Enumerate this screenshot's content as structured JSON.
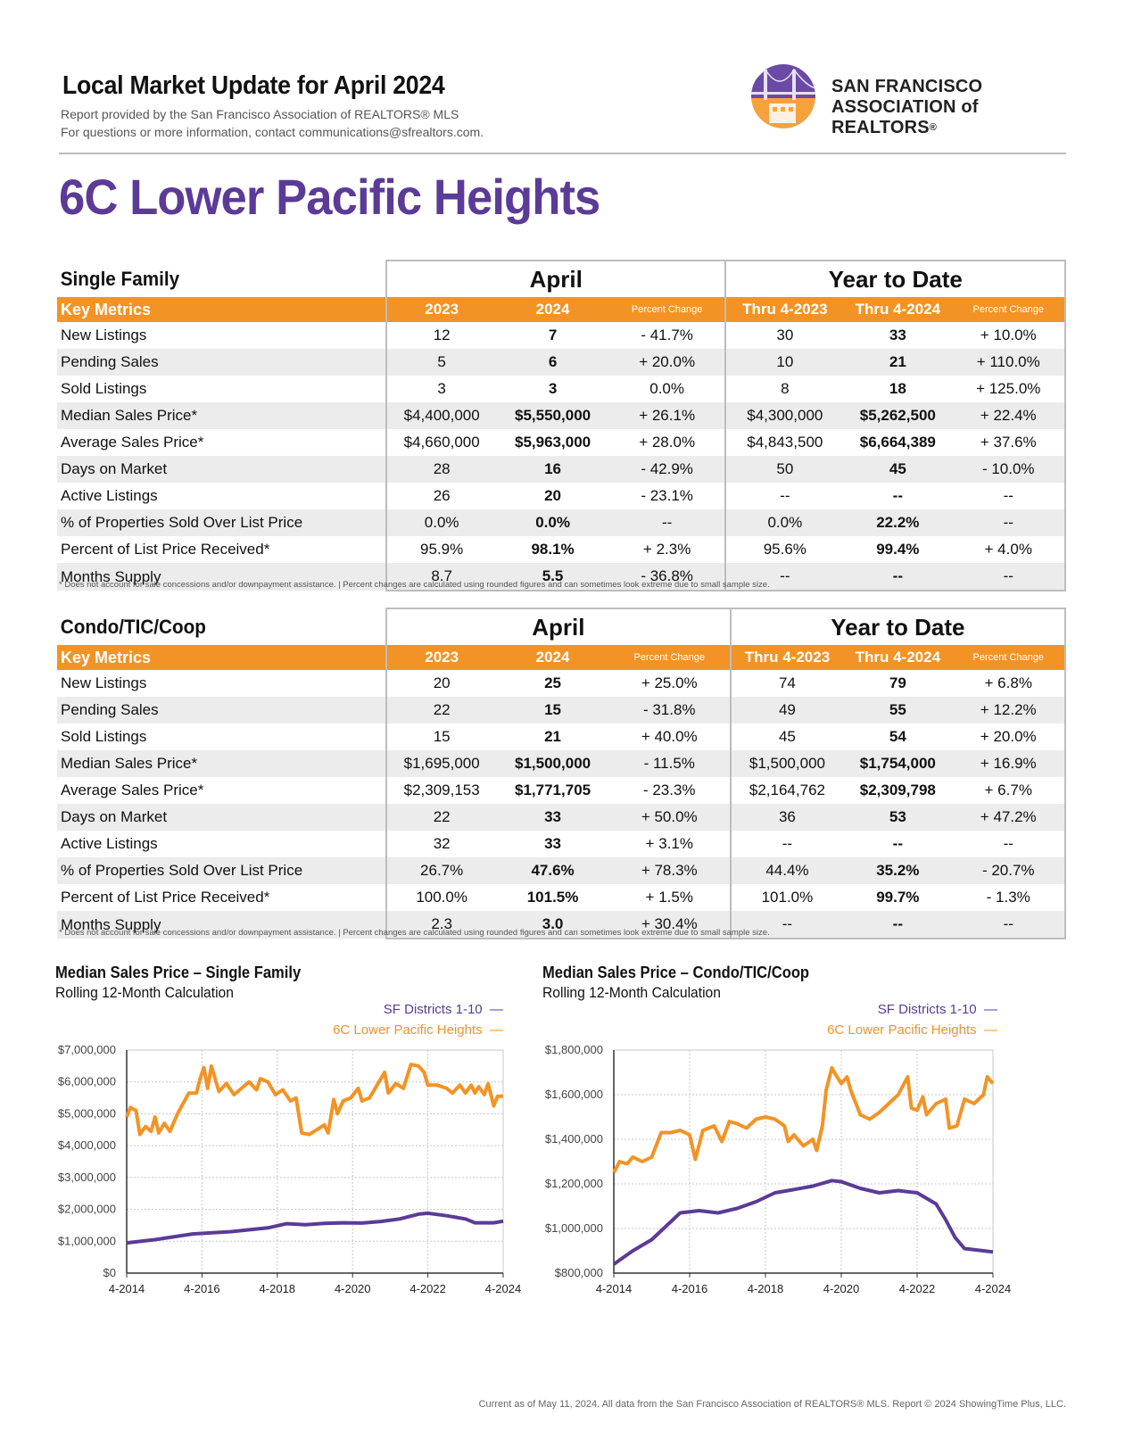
{
  "header": {
    "title": "Local Market Update for April 2024",
    "line1": "Report provided by the San Francisco Association of REALTORS® MLS",
    "line2": "For questions or more information, contact communications@sfrealtors.com.",
    "logo_line1": "SAN FRANCISCO",
    "logo_line2": "ASSOCIATION of REALTORS",
    "logo_reg": "®"
  },
  "area_title": "6C Lower Pacific Heights",
  "col_labels": {
    "april": "April",
    "ytd": "Year to Date",
    "key_metrics": "Key Metrics",
    "y2023": "2023",
    "y2024": "2024",
    "pct": "Percent Change",
    "thru2023": "Thru 4-2023",
    "thru2024": "Thru 4-2024"
  },
  "single_family": {
    "section": "Single Family",
    "rows": [
      {
        "metric": "New Listings",
        "a23": "12",
        "a24": "7",
        "apc": "- 41.7%",
        "y23": "30",
        "y24": "33",
        "ypc": "+ 10.0%"
      },
      {
        "metric": "Pending Sales",
        "a23": "5",
        "a24": "6",
        "apc": "+ 20.0%",
        "y23": "10",
        "y24": "21",
        "ypc": "+ 110.0%"
      },
      {
        "metric": "Sold Listings",
        "a23": "3",
        "a24": "3",
        "apc": "0.0%",
        "y23": "8",
        "y24": "18",
        "ypc": "+ 125.0%"
      },
      {
        "metric": "Median Sales Price*",
        "a23": "$4,400,000",
        "a24": "$5,550,000",
        "apc": "+ 26.1%",
        "y23": "$4,300,000",
        "y24": "$5,262,500",
        "ypc": "+ 22.4%"
      },
      {
        "metric": "Average Sales Price*",
        "a23": "$4,660,000",
        "a24": "$5,963,000",
        "apc": "+ 28.0%",
        "y23": "$4,843,500",
        "y24": "$6,664,389",
        "ypc": "+ 37.6%"
      },
      {
        "metric": "Days on Market",
        "a23": "28",
        "a24": "16",
        "apc": "- 42.9%",
        "y23": "50",
        "y24": "45",
        "ypc": "- 10.0%"
      },
      {
        "metric": "Active Listings",
        "a23": "26",
        "a24": "20",
        "apc": "- 23.1%",
        "y23": "--",
        "y24": "--",
        "ypc": "--"
      },
      {
        "metric": "% of Properties Sold Over List Price",
        "a23": "0.0%",
        "a24": "0.0%",
        "apc": "--",
        "y23": "0.0%",
        "y24": "22.2%",
        "ypc": "--"
      },
      {
        "metric": "Percent of List Price Received*",
        "a23": "95.9%",
        "a24": "98.1%",
        "apc": "+ 2.3%",
        "y23": "95.6%",
        "y24": "99.4%",
        "ypc": "+ 4.0%"
      },
      {
        "metric": "Months Supply",
        "a23": "8.7",
        "a24": "5.5",
        "apc": "- 36.8%",
        "y23": "--",
        "y24": "--",
        "ypc": "--"
      }
    ]
  },
  "condo": {
    "section": "Condo/TIC/Coop",
    "rows": [
      {
        "metric": "New Listings",
        "a23": "20",
        "a24": "25",
        "apc": "+ 25.0%",
        "y23": "74",
        "y24": "79",
        "ypc": "+ 6.8%"
      },
      {
        "metric": "Pending Sales",
        "a23": "22",
        "a24": "15",
        "apc": "- 31.8%",
        "y23": "49",
        "y24": "55",
        "ypc": "+ 12.2%"
      },
      {
        "metric": "Sold Listings",
        "a23": "15",
        "a24": "21",
        "apc": "+ 40.0%",
        "y23": "45",
        "y24": "54",
        "ypc": "+ 20.0%"
      },
      {
        "metric": "Median Sales Price*",
        "a23": "$1,695,000",
        "a24": "$1,500,000",
        "apc": "- 11.5%",
        "y23": "$1,500,000",
        "y24": "$1,754,000",
        "ypc": "+ 16.9%"
      },
      {
        "metric": "Average Sales Price*",
        "a23": "$2,309,153",
        "a24": "$1,771,705",
        "apc": "- 23.3%",
        "y23": "$2,164,762",
        "y24": "$2,309,798",
        "ypc": "+ 6.7%"
      },
      {
        "metric": "Days on Market",
        "a23": "22",
        "a24": "33",
        "apc": "+ 50.0%",
        "y23": "36",
        "y24": "53",
        "ypc": "+ 47.2%"
      },
      {
        "metric": "Active Listings",
        "a23": "32",
        "a24": "33",
        "apc": "+ 3.1%",
        "y23": "--",
        "y24": "--",
        "ypc": "--"
      },
      {
        "metric": "% of Properties Sold Over List Price",
        "a23": "26.7%",
        "a24": "47.6%",
        "apc": "+ 78.3%",
        "y23": "44.4%",
        "y24": "35.2%",
        "ypc": "- 20.7%"
      },
      {
        "metric": "Percent of List Price Received*",
        "a23": "100.0%",
        "a24": "101.5%",
        "apc": "+ 1.5%",
        "y23": "101.0%",
        "y24": "99.7%",
        "ypc": "- 1.3%"
      },
      {
        "metric": "Months Supply",
        "a23": "2.3",
        "a24": "3.0",
        "apc": "+ 30.4%",
        "y23": "--",
        "y24": "--",
        "ypc": "--"
      }
    ]
  },
  "footnote": "* Does not account for sale concessions and/or downpayment assistance.  |  Percent changes are calculated using rounded figures and can sometimes look extreme due to small sample size.",
  "credit": "Current as of May 11, 2024. All data from the San Francisco Association of REALTORS® MLS. Report © 2024 ShowingTime Plus, LLC.",
  "colors": {
    "orange": "#f39325",
    "purple": "#5b3b97",
    "grid": "#c8c8c8"
  },
  "chart_data": [
    {
      "type": "line",
      "title": "Median Sales Price – Single Family",
      "subtitle": "Rolling 12-Month Calculation",
      "x_ticks": [
        "4-2014",
        "4-2016",
        "4-2018",
        "4-2020",
        "4-2022",
        "4-2024"
      ],
      "y_ticks": [
        "$0",
        "$1,000,000",
        "$2,000,000",
        "$3,000,000",
        "$4,000,000",
        "$5,000,000",
        "$6,000,000",
        "$7,000,000"
      ],
      "ylim": [
        0,
        7000000
      ],
      "xlim": [
        2014.25,
        2024.25
      ],
      "legend_placement": "top-right",
      "series": [
        {
          "name": "SF Districts 1-10",
          "color": "#5b3b97",
          "points": [
            [
              2014.25,
              950000
            ],
            [
              2015,
              1050000
            ],
            [
              2016,
              1230000
            ],
            [
              2017,
              1300000
            ],
            [
              2018,
              1420000
            ],
            [
              2018.5,
              1550000
            ],
            [
              2019,
              1520000
            ],
            [
              2019.5,
              1560000
            ],
            [
              2020,
              1580000
            ],
            [
              2020.5,
              1570000
            ],
            [
              2021,
              1620000
            ],
            [
              2021.5,
              1700000
            ],
            [
              2022,
              1850000
            ],
            [
              2022.25,
              1880000
            ],
            [
              2022.75,
              1800000
            ],
            [
              2023.25,
              1700000
            ],
            [
              2023.5,
              1580000
            ],
            [
              2024,
              1580000
            ],
            [
              2024.25,
              1630000
            ]
          ]
        },
        {
          "name": "6C Lower Pacific Heights",
          "color": "#f39325",
          "points": [
            [
              2014.25,
              4900000
            ],
            [
              2014.35,
              5200000
            ],
            [
              2014.5,
              5100000
            ],
            [
              2014.6,
              4350000
            ],
            [
              2014.75,
              4600000
            ],
            [
              2014.9,
              4450000
            ],
            [
              2015,
              4900000
            ],
            [
              2015.1,
              4400000
            ],
            [
              2015.25,
              4700000
            ],
            [
              2015.4,
              4450000
            ],
            [
              2015.6,
              5000000
            ],
            [
              2015.9,
              5650000
            ],
            [
              2016.1,
              5650000
            ],
            [
              2016.2,
              6100000
            ],
            [
              2016.3,
              6450000
            ],
            [
              2016.4,
              5800000
            ],
            [
              2016.5,
              6500000
            ],
            [
              2016.7,
              5700000
            ],
            [
              2016.9,
              5950000
            ],
            [
              2017.1,
              5600000
            ],
            [
              2017.3,
              5800000
            ],
            [
              2017.5,
              6000000
            ],
            [
              2017.7,
              5750000
            ],
            [
              2017.8,
              6100000
            ],
            [
              2018,
              6000000
            ],
            [
              2018.2,
              5600000
            ],
            [
              2018.4,
              5750000
            ],
            [
              2018.6,
              5400000
            ],
            [
              2018.75,
              5500000
            ],
            [
              2018.9,
              4400000
            ],
            [
              2019.1,
              4350000
            ],
            [
              2019.3,
              4500000
            ],
            [
              2019.5,
              4650000
            ],
            [
              2019.6,
              4400000
            ],
            [
              2019.75,
              5450000
            ],
            [
              2019.85,
              5000000
            ],
            [
              2020,
              5400000
            ],
            [
              2020.2,
              5500000
            ],
            [
              2020.4,
              5800000
            ],
            [
              2020.5,
              5400000
            ],
            [
              2020.7,
              5500000
            ],
            [
              2020.9,
              5900000
            ],
            [
              2021.1,
              6300000
            ],
            [
              2021.2,
              5650000
            ],
            [
              2021.4,
              5950000
            ],
            [
              2021.6,
              5800000
            ],
            [
              2021.8,
              6550000
            ],
            [
              2022,
              6500000
            ],
            [
              2022.15,
              6300000
            ],
            [
              2022.25,
              5900000
            ],
            [
              2022.5,
              5900000
            ],
            [
              2022.75,
              5800000
            ],
            [
              2022.9,
              5650000
            ],
            [
              2023.1,
              5900000
            ],
            [
              2023.25,
              5650000
            ],
            [
              2023.4,
              5900000
            ],
            [
              2023.5,
              5650000
            ],
            [
              2023.6,
              5850000
            ],
            [
              2023.75,
              5600000
            ],
            [
              2023.85,
              5950000
            ],
            [
              2024,
              5250000
            ],
            [
              2024.1,
              5550000
            ],
            [
              2024.25,
              5550000
            ]
          ]
        }
      ]
    },
    {
      "type": "line",
      "title": "Median Sales Price – Condo/TIC/Coop",
      "subtitle": "Rolling 12-Month Calculation",
      "x_ticks": [
        "4-2014",
        "4-2016",
        "4-2018",
        "4-2020",
        "4-2022",
        "4-2024"
      ],
      "y_ticks": [
        "$800,000",
        "$1,000,000",
        "$1,200,000",
        "$1,400,000",
        "$1,600,000",
        "$1,800,000"
      ],
      "ylim": [
        800000,
        1800000
      ],
      "xlim": [
        2014.25,
        2024.25
      ],
      "legend_placement": "top-right",
      "series": [
        {
          "name": "SF Districts 1-10",
          "color": "#5b3b97",
          "points": [
            [
              2014.25,
              840000
            ],
            [
              2014.75,
              900000
            ],
            [
              2015.25,
              950000
            ],
            [
              2015.75,
              1030000
            ],
            [
              2016,
              1070000
            ],
            [
              2016.5,
              1080000
            ],
            [
              2017,
              1070000
            ],
            [
              2017.5,
              1090000
            ],
            [
              2018,
              1120000
            ],
            [
              2018.5,
              1160000
            ],
            [
              2019,
              1175000
            ],
            [
              2019.5,
              1190000
            ],
            [
              2020,
              1215000
            ],
            [
              2020.25,
              1210000
            ],
            [
              2020.75,
              1180000
            ],
            [
              2021.25,
              1160000
            ],
            [
              2021.75,
              1170000
            ],
            [
              2022.25,
              1160000
            ],
            [
              2022.75,
              1110000
            ],
            [
              2023,
              1040000
            ],
            [
              2023.25,
              960000
            ],
            [
              2023.5,
              910000
            ],
            [
              2024,
              900000
            ],
            [
              2024.25,
              895000
            ]
          ]
        },
        {
          "name": "6C Lower Pacific Heights",
          "color": "#f39325",
          "points": [
            [
              2014.25,
              1250000
            ],
            [
              2014.4,
              1300000
            ],
            [
              2014.6,
              1290000
            ],
            [
              2014.75,
              1320000
            ],
            [
              2015,
              1300000
            ],
            [
              2015.25,
              1320000
            ],
            [
              2015.5,
              1430000
            ],
            [
              2015.75,
              1430000
            ],
            [
              2016,
              1440000
            ],
            [
              2016.25,
              1420000
            ],
            [
              2016.4,
              1310000
            ],
            [
              2016.6,
              1440000
            ],
            [
              2016.9,
              1460000
            ],
            [
              2017.1,
              1390000
            ],
            [
              2017.3,
              1480000
            ],
            [
              2017.5,
              1470000
            ],
            [
              2017.75,
              1450000
            ],
            [
              2018,
              1490000
            ],
            [
              2018.25,
              1500000
            ],
            [
              2018.5,
              1490000
            ],
            [
              2018.75,
              1460000
            ],
            [
              2018.85,
              1390000
            ],
            [
              2019,
              1420000
            ],
            [
              2019.25,
              1370000
            ],
            [
              2019.5,
              1400000
            ],
            [
              2019.6,
              1350000
            ],
            [
              2019.75,
              1460000
            ],
            [
              2019.85,
              1620000
            ],
            [
              2020,
              1720000
            ],
            [
              2020.1,
              1690000
            ],
            [
              2020.25,
              1650000
            ],
            [
              2020.4,
              1680000
            ],
            [
              2020.5,
              1620000
            ],
            [
              2020.75,
              1510000
            ],
            [
              2021,
              1490000
            ],
            [
              2021.25,
              1520000
            ],
            [
              2021.5,
              1560000
            ],
            [
              2021.75,
              1600000
            ],
            [
              2022,
              1680000
            ],
            [
              2022.1,
              1540000
            ],
            [
              2022.25,
              1530000
            ],
            [
              2022.4,
              1590000
            ],
            [
              2022.5,
              1510000
            ],
            [
              2022.75,
              1560000
            ],
            [
              2023,
              1580000
            ],
            [
              2023.1,
              1450000
            ],
            [
              2023.3,
              1460000
            ],
            [
              2023.5,
              1580000
            ],
            [
              2023.75,
              1560000
            ],
            [
              2024,
              1600000
            ],
            [
              2024.1,
              1680000
            ],
            [
              2024.25,
              1650000
            ]
          ]
        }
      ]
    }
  ]
}
